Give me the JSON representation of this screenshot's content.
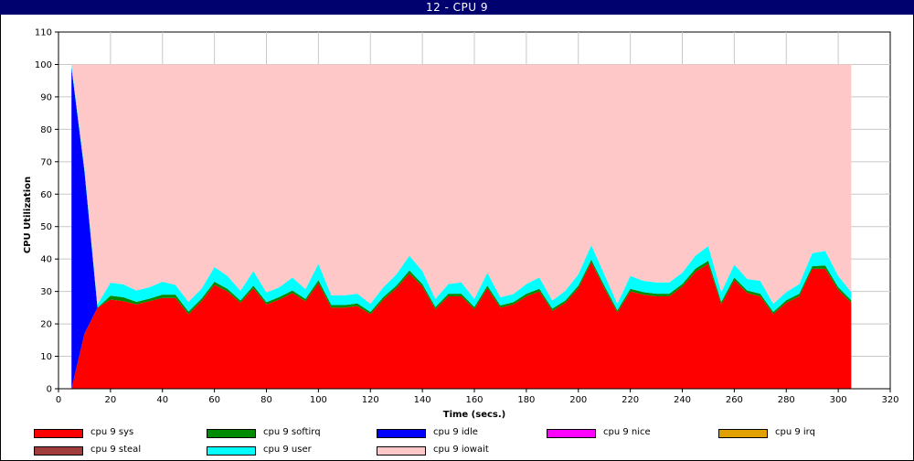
{
  "window": {
    "title": "12 - CPU 9"
  },
  "chart_data": {
    "type": "area",
    "stacked": true,
    "title": "12 - CPU 9",
    "xlabel": "Time (secs.)",
    "ylabel": "CPU Utilization",
    "xlim": [
      0,
      320
    ],
    "ylim": [
      0,
      110
    ],
    "xticks": [
      0,
      20,
      40,
      60,
      80,
      100,
      120,
      140,
      160,
      180,
      200,
      220,
      240,
      260,
      280,
      300,
      320
    ],
    "yticks": [
      0,
      10,
      20,
      30,
      40,
      50,
      60,
      70,
      80,
      90,
      100,
      110
    ],
    "grid": true,
    "legend_position": "bottom",
    "x": [
      5,
      10,
      15,
      20,
      25,
      30,
      35,
      40,
      45,
      50,
      55,
      60,
      65,
      70,
      75,
      80,
      85,
      90,
      95,
      100,
      105,
      110,
      115,
      120,
      125,
      130,
      135,
      140,
      145,
      150,
      155,
      160,
      165,
      170,
      175,
      180,
      185,
      190,
      195,
      200,
      205,
      210,
      215,
      220,
      225,
      230,
      235,
      240,
      245,
      250,
      255,
      260,
      265,
      270,
      275,
      280,
      285,
      290,
      295,
      300,
      305
    ],
    "series": [
      {
        "name": "cpu 9 sys",
        "color": "#ff0000",
        "values": [
          0,
          17,
          25,
          27.5,
          27,
          26,
          27,
          28,
          28,
          23,
          27,
          32,
          30,
          26.5,
          31,
          26,
          27.5,
          29.5,
          27,
          32.5,
          25,
          25,
          25.5,
          23,
          27.5,
          31,
          35.5,
          31.5,
          24.5,
          28.5,
          28.5,
          24.5,
          31,
          25,
          26,
          28.5,
          30,
          24,
          26.5,
          31,
          39,
          31,
          23.5,
          30,
          29,
          28.5,
          28.5,
          31.5,
          36,
          38.5,
          26,
          33.5,
          29.5,
          28.5,
          23,
          26.5,
          28.5,
          37,
          37,
          30.5,
          26.5
        ]
      },
      {
        "name": "cpu 9 softirq",
        "color": "#008c00",
        "values": [
          0,
          0,
          0,
          1.2,
          1.2,
          0.8,
          0.8,
          1,
          1,
          0.8,
          0.8,
          1,
          0.8,
          0.7,
          0.8,
          0.7,
          0.8,
          0.8,
          0.7,
          1,
          0.8,
          0.8,
          0.8,
          0.7,
          0.8,
          0.8,
          1,
          0.8,
          0.7,
          0.8,
          0.8,
          0.7,
          0.8,
          0.7,
          0.7,
          0.8,
          0.8,
          0.7,
          0.7,
          0.8,
          0.8,
          0.8,
          0.7,
          0.8,
          0.8,
          0.8,
          0.8,
          0.8,
          1,
          1,
          0.8,
          0.8,
          0.8,
          0.8,
          0.7,
          0.8,
          0.8,
          0.8,
          1,
          0.8,
          0.8
        ]
      },
      {
        "name": "cpu 9 idle",
        "color": "#0000ff",
        "values": [
          99,
          50,
          0,
          0,
          0,
          0,
          0,
          0,
          0,
          0,
          0,
          0,
          0,
          0,
          0,
          0,
          0,
          0,
          0,
          0,
          0,
          0,
          0,
          0,
          0,
          0,
          0,
          0,
          0,
          0,
          0,
          0,
          0,
          0,
          0,
          0,
          0,
          0,
          0,
          0,
          0,
          0,
          0,
          0,
          0,
          0,
          0,
          0,
          0,
          0,
          0,
          0,
          0,
          0,
          0,
          0,
          0,
          0,
          0,
          0,
          0
        ]
      },
      {
        "name": "cpu 9 nice",
        "color": "#ff00ff",
        "values": [
          0,
          0,
          0,
          0,
          0,
          0,
          0,
          0,
          0,
          0,
          0,
          0,
          0,
          0,
          0,
          0,
          0,
          0,
          0,
          0,
          0,
          0,
          0,
          0,
          0,
          0,
          0,
          0,
          0,
          0,
          0,
          0,
          0,
          0,
          0,
          0,
          0,
          0,
          0,
          0,
          0,
          0,
          0,
          0,
          0,
          0,
          0,
          0,
          0,
          0,
          0,
          0,
          0,
          0,
          0,
          0,
          0,
          0,
          0,
          0,
          0
        ]
      },
      {
        "name": "cpu 9 irq",
        "color": "#e0a000",
        "values": [
          0,
          0,
          0,
          0,
          0,
          0,
          0,
          0,
          0,
          0,
          0,
          0,
          0,
          0,
          0,
          0,
          0,
          0,
          0,
          0,
          0,
          0,
          0,
          0,
          0,
          0,
          0,
          0,
          0,
          0,
          0,
          0,
          0,
          0,
          0,
          0,
          0,
          0,
          0,
          0,
          0,
          0,
          0,
          0,
          0,
          0,
          0,
          0,
          0,
          0,
          0,
          0,
          0,
          0,
          0,
          0,
          0,
          0,
          0,
          0,
          0
        ]
      },
      {
        "name": "cpu 9 steal",
        "color": "#a03c3c",
        "values": [
          0,
          0,
          0,
          0,
          0,
          0,
          0,
          0,
          0,
          0,
          0,
          0,
          0,
          0,
          0,
          0,
          0,
          0,
          0,
          0,
          0,
          0,
          0,
          0,
          0,
          0,
          0,
          0,
          0,
          0,
          0,
          0,
          0,
          0,
          0,
          0,
          0,
          0,
          0,
          0,
          0,
          0,
          0,
          0,
          0,
          0,
          0,
          0,
          0,
          0,
          0,
          0,
          0,
          0,
          0,
          0,
          0,
          0,
          0,
          0,
          0
        ]
      },
      {
        "name": "cpu 9 user",
        "color": "#00ffff",
        "values": [
          1,
          1,
          1,
          4,
          4,
          3.5,
          3.5,
          4,
          3,
          3,
          3,
          4.5,
          4,
          3,
          4.5,
          3,
          3,
          4,
          3,
          5,
          3,
          3,
          3,
          2.5,
          3,
          3.5,
          4.5,
          4,
          2.5,
          3,
          3.5,
          2.5,
          4,
          2.5,
          2.5,
          3,
          3.5,
          2.5,
          3,
          3.5,
          4.5,
          3.5,
          2,
          4,
          3.5,
          3.5,
          3.5,
          3.5,
          4,
          4.5,
          3,
          4,
          3.5,
          4,
          2.5,
          2.5,
          3,
          4,
          4.5,
          3.5,
          2.5
        ]
      },
      {
        "name": "cpu 9 iowait",
        "color": "#ffc8c8",
        "values": [
          0,
          32,
          74,
          67.3,
          67.8,
          69.7,
          68.7,
          67,
          68,
          73.2,
          69.2,
          62.5,
          65.2,
          69.8,
          63.7,
          70.3,
          68.7,
          65.7,
          69.3,
          61.5,
          71.2,
          71.2,
          70.7,
          73.8,
          68.7,
          64.7,
          59,
          63.7,
          72.3,
          67.7,
          67.2,
          72.3,
          64.2,
          71.8,
          70.8,
          67.7,
          65.7,
          72.8,
          69.8,
          64.7,
          55.7,
          64.7,
          73.8,
          65.2,
          66.7,
          67.2,
          67.2,
          64.2,
          59,
          56,
          70.2,
          61.7,
          66.2,
          66.7,
          73.8,
          70.2,
          67.7,
          58.2,
          57.5,
          65.2,
          70.2
        ]
      }
    ]
  }
}
